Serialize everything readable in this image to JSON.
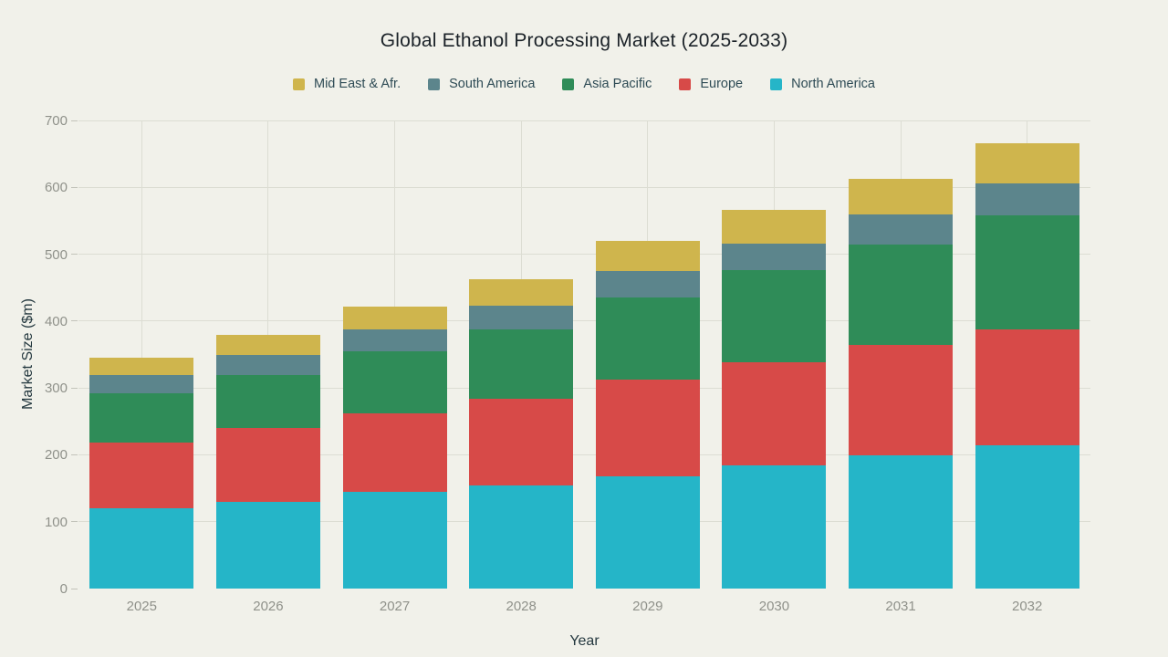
{
  "title": "Global Ethanol Processing Market (2025-2033)",
  "colors": {
    "background": "#f1f1ea",
    "grid": "#dcddd3",
    "axis_line": "#505456",
    "tick_text": "#8f918a",
    "axis_title_text": "#24383f",
    "legend_text": "#2e4b55",
    "title_text": "#1b2228"
  },
  "chart_data": {
    "type": "bar",
    "stacked": true,
    "title": "Global Ethanol Processing Market (2025-2033)",
    "xlabel": "Year",
    "ylabel": "Market Size ($m)",
    "ylim": [
      0,
      700
    ],
    "yticks": [
      0,
      100,
      200,
      300,
      400,
      500,
      600,
      700
    ],
    "grid": true,
    "legend_position": "top",
    "categories": [
      "2025",
      "2026",
      "2027",
      "2028",
      "2029",
      "2030",
      "2031",
      "2032"
    ],
    "series": [
      {
        "name": "North America",
        "color": "#25b5c8",
        "values": [
          120,
          130,
          144,
          154,
          168,
          184,
          199,
          214
        ]
      },
      {
        "name": "Europe",
        "color": "#d74a48",
        "values": [
          98,
          110,
          118,
          130,
          145,
          154,
          166,
          174
        ]
      },
      {
        "name": "Asia Pacific",
        "color": "#2f8c58",
        "values": [
          74,
          80,
          93,
          104,
          122,
          138,
          150,
          170
        ]
      },
      {
        "name": "South America",
        "color": "#5c858c",
        "values": [
          28,
          30,
          33,
          35,
          40,
          40,
          44,
          48
        ]
      },
      {
        "name": "Mid East & Afr.",
        "color": "#cfb54d",
        "values": [
          25,
          30,
          34,
          40,
          45,
          50,
          54,
          60
        ]
      }
    ],
    "totals": [
      345,
      380,
      422,
      463,
      520,
      566,
      613,
      666
    ],
    "legend_order": [
      "Mid East & Afr.",
      "South America",
      "Asia Pacific",
      "Europe",
      "North America"
    ]
  }
}
